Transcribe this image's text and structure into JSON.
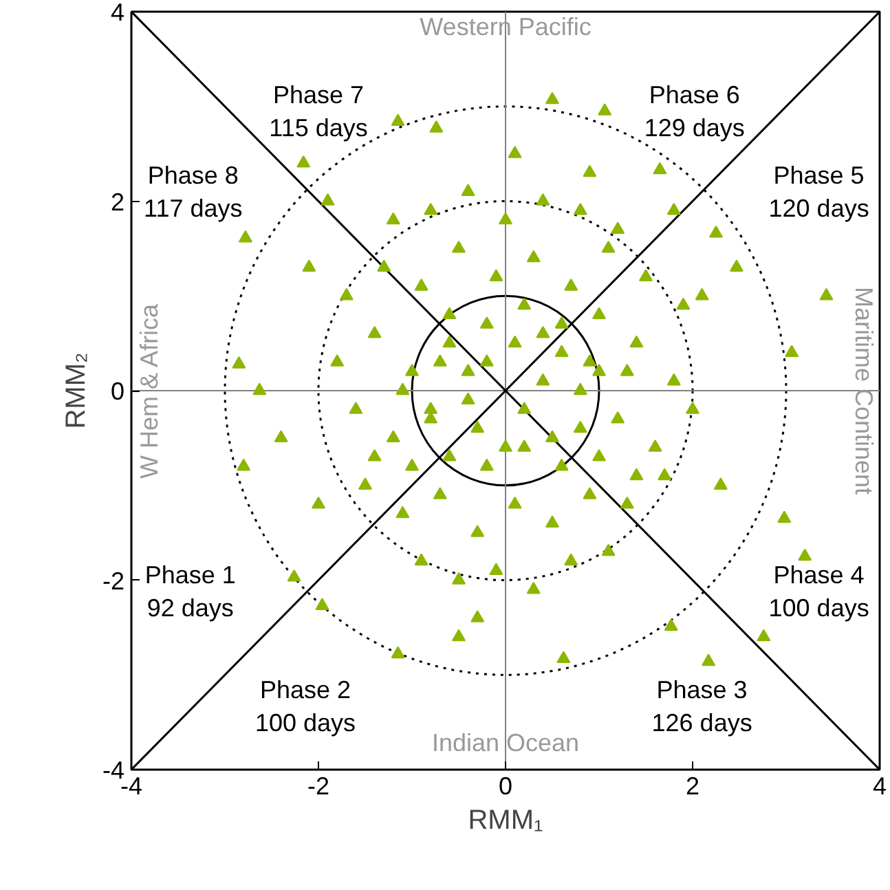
{
  "chart_data": {
    "type": "scatter",
    "xlabel": "RMM₁",
    "ylabel": "RMM₂",
    "xlim": [
      -4,
      4
    ],
    "ylim": [
      -4,
      4
    ],
    "xticks": [
      -4,
      -2,
      0,
      2,
      4
    ],
    "yticks": [
      -4,
      -2,
      0,
      2,
      4
    ],
    "grid": false,
    "annotations": [
      "Phase 7\n115 days",
      "Phase 6\n129 days",
      "Phase 8\n117 days",
      "Phase 5\n120 days",
      "Phase 1\n92 days",
      "Phase 4\n100 days",
      "Phase 2\n100 days",
      "Phase 3\n126 days",
      "Western Pacific",
      "Indian Ocean",
      "W Hem & Africa",
      "Maritime Continent"
    ],
    "series": [
      {
        "type": "line",
        "color": "#808080",
        "line_style": "solid",
        "marker": "none",
        "x": [
          0,
          0
        ],
        "values": [
          -4,
          4
        ]
      },
      {
        "type": "line",
        "color": "#808080",
        "line_style": "solid",
        "marker": "none",
        "x": [
          -4,
          4
        ],
        "values": [
          0,
          0
        ]
      },
      {
        "type": "line",
        "color": "#000000",
        "line_style": "solid",
        "marker": "none",
        "x": [
          -4,
          4
        ],
        "values": [
          -4,
          4
        ]
      },
      {
        "type": "line",
        "color": "#000000",
        "line_style": "solid",
        "marker": "none",
        "x": [
          -4,
          4
        ],
        "values": [
          4,
          -4
        ]
      },
      {
        "color": "#8db600",
        "marker": "triangle",
        "x": [
          -2.78,
          -2.85,
          -2.63,
          -2.8,
          -2.4,
          1.06,
          0.5,
          -1.15,
          -2.16,
          2.98,
          3.2,
          2.76,
          2.17,
          1.77,
          0.62,
          -1.15,
          -1.96,
          -2.26,
          3.43,
          3.06,
          2.47,
          2.25,
          1.65,
          -0.74,
          -1.8,
          -1.6,
          -1.4,
          -1.2,
          -1.0,
          -0.8,
          -0.6,
          -0.4,
          -0.2,
          0.2,
          0.4,
          0.6,
          0.8,
          1.0,
          1.2,
          1.4,
          1.6,
          1.8,
          2.0,
          -1.7,
          -1.3,
          -0.9,
          -0.5,
          -0.1,
          0.3,
          0.7,
          1.1,
          1.5,
          1.9,
          -1.5,
          -1.1,
          -0.7,
          -0.3,
          0.1,
          0.5,
          0.9,
          1.3,
          1.7,
          -1.2,
          -0.8,
          -0.4,
          0.0,
          0.4,
          0.8,
          1.2,
          -0.9,
          -0.5,
          -0.1,
          0.3,
          0.7,
          1.1,
          -0.6,
          -0.2,
          0.2,
          0.6,
          1.0,
          -1.4,
          -1.0,
          -0.6,
          -0.2,
          0.2,
          0.6,
          1.0,
          1.4,
          -1.1,
          -0.7,
          -0.3,
          0.1,
          0.5,
          0.9,
          1.3,
          -0.8,
          -0.4,
          0.0,
          0.4,
          0.8,
          -2.1,
          2.3,
          -2.0,
          2.1,
          0.1,
          -0.3,
          0.9,
          -1.9,
          1.8,
          -0.5
        ],
        "values": [
          1.61,
          0.28,
          0.0,
          -0.8,
          -0.5,
          2.95,
          3.07,
          2.84,
          2.4,
          -1.35,
          -1.75,
          -2.6,
          -2.86,
          -2.49,
          -2.83,
          -2.78,
          -2.27,
          -1.97,
          1.0,
          0.4,
          1.3,
          1.66,
          2.33,
          2.77,
          0.3,
          -0.2,
          0.6,
          -0.5,
          0.2,
          -0.3,
          0.5,
          -0.1,
          0.3,
          -0.2,
          0.1,
          0.4,
          -0.4,
          0.2,
          -0.3,
          0.5,
          -0.6,
          0.1,
          -0.2,
          1.0,
          1.3,
          1.1,
          1.5,
          1.2,
          1.4,
          1.1,
          1.5,
          1.2,
          0.9,
          -1.0,
          -1.3,
          -1.1,
          -1.5,
          -1.2,
          -1.4,
          -1.1,
          -1.2,
          -0.9,
          1.8,
          1.9,
          2.1,
          1.8,
          2.0,
          1.9,
          1.7,
          -1.8,
          -2.0,
          -1.9,
          -2.1,
          -1.8,
          -1.7,
          0.8,
          0.7,
          0.9,
          0.7,
          0.8,
          -0.7,
          -0.8,
          -0.7,
          -0.8,
          -0.6,
          -0.8,
          -0.7,
          -0.9,
          0.0,
          0.3,
          -0.4,
          0.5,
          -0.5,
          0.3,
          0.2,
          -0.2,
          0.2,
          -0.6,
          0.6,
          0.0,
          1.3,
          -1.0,
          -1.2,
          1.0,
          2.5,
          -2.4,
          2.3,
          2.0,
          1.9,
          -2.6
        ]
      }
    ]
  }
}
